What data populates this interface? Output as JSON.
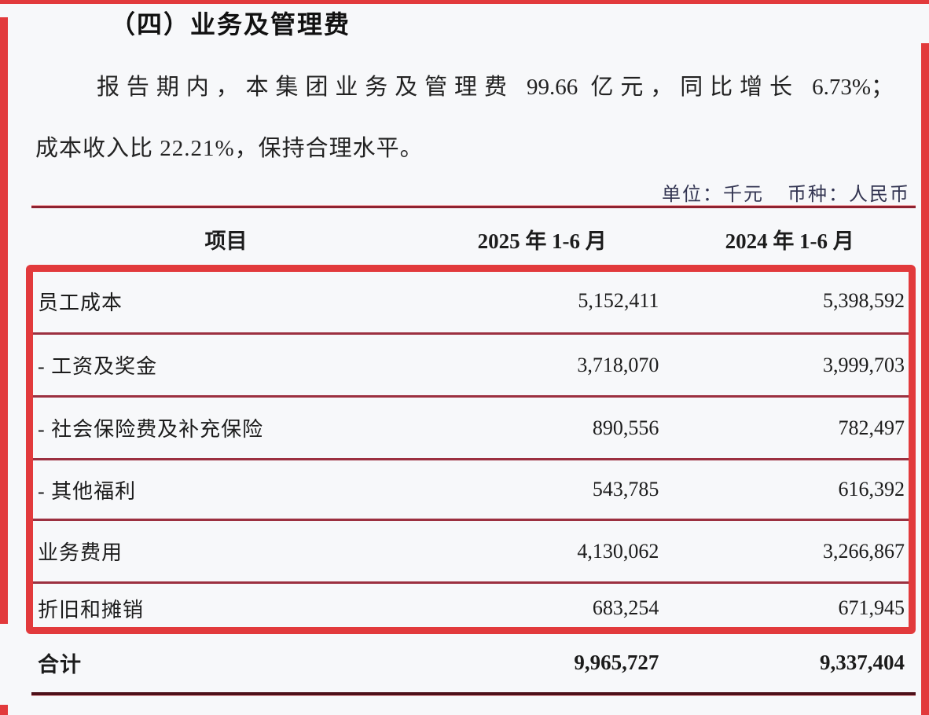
{
  "page": {
    "title": "（四）业务及管理费",
    "paragraph": {
      "line1": "报告期内，本集团业务及管理费 99.66 亿元，同比增长 6.73%；",
      "line2": "成本收入比 22.21%，保持合理水平。"
    },
    "unit_note": {
      "unit": "单位：千元",
      "currency": "币种：人民币"
    }
  },
  "table": {
    "columns": [
      "项目",
      "2025 年 1-6 月",
      "2024 年 1-6 月"
    ],
    "rows": [
      {
        "item": "员工成本",
        "v2025": "5,152,411",
        "v2024": "5,398,592"
      },
      {
        "item": "- 工资及奖金",
        "v2025": "3,718,070",
        "v2024": "3,999,703"
      },
      {
        "item": "- 社会保险费及补充保险",
        "v2025": "890,556",
        "v2024": "782,497"
      },
      {
        "item": "- 其他福利",
        "v2025": "543,785",
        "v2024": "616,392"
      },
      {
        "item": "业务费用",
        "v2025": "4,130,062",
        "v2024": "3,266,867"
      },
      {
        "item": "折旧和摊销",
        "v2025": "683,254",
        "v2024": "671,945"
      }
    ],
    "total": {
      "item": "合计",
      "v2025": "9,965,727",
      "v2024": "9,337,404"
    },
    "highlighted_rows": [
      0,
      1,
      2,
      3,
      4,
      5
    ]
  },
  "colors": {
    "frame_red": "#e23a3c",
    "highlight_border": "#e23a3c",
    "row_separator": "#9c3040",
    "table_top_border": "#8e2230",
    "table_bottom_border": "#4d1019",
    "unit_text": "#333552",
    "background": "#f7f8fa"
  }
}
